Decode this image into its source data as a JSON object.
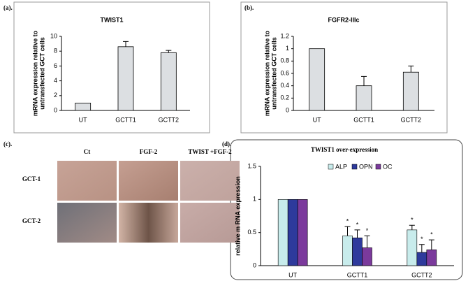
{
  "chart_data": [
    {
      "type": "bar",
      "panel": "(a).",
      "title": "TWIST1",
      "ylabel": [
        "mRNA expression  relative to",
        "untransfected GCT cells"
      ],
      "categories": [
        "UT",
        "GCTT1",
        "GCTT2"
      ],
      "values": [
        1,
        8.6,
        7.8
      ],
      "errors": [
        0,
        0.7,
        0.3
      ],
      "color": "#dcdfe2",
      "ylim": [
        0,
        10
      ],
      "yticks": [
        0,
        2,
        4,
        6,
        8,
        10
      ]
    },
    {
      "type": "bar",
      "panel": "(b).",
      "title": "FGFR2-IIIc",
      "ylabel": [
        "mRNA expression  relative to",
        "untransfected GCT cells"
      ],
      "categories": [
        "UT",
        "GCTT1",
        "GCTT2"
      ],
      "values": [
        1,
        0.4,
        0.62
      ],
      "errors": [
        0,
        0.15,
        0.1
      ],
      "color": "#dcdfe2",
      "ylim": [
        0,
        1.2
      ],
      "yticks": [
        0,
        0.2,
        0.4,
        0.6,
        0.8,
        1,
        1.2
      ]
    },
    {
      "type": "image_grid",
      "panel": "(c).",
      "columns": [
        "Ct",
        "FGF-2",
        "TWIST +FGF-2"
      ],
      "rows": [
        "GCT-1",
        "GCT-2"
      ]
    },
    {
      "type": "grouped_bar",
      "panel": "(d).",
      "title": "TWIST1 over-expression",
      "ylabel": [
        "relative m RNA  expression"
      ],
      "categories": [
        "UT",
        "GCTT1",
        "GCTT2"
      ],
      "series": [
        {
          "name": "ALP",
          "color": "#c8ecec",
          "values": [
            1,
            0.45,
            0.54
          ],
          "errors": [
            0,
            0.14,
            0.07
          ],
          "annotations": [
            null,
            "*",
            "*"
          ]
        },
        {
          "name": "OPN",
          "color": "#2e3a9c",
          "values": [
            1,
            0.42,
            0.2
          ],
          "errors": [
            0,
            0.12,
            0.12
          ],
          "annotations": [
            null,
            "*",
            "*"
          ]
        },
        {
          "name": "OC",
          "color": "#7b3a9c",
          "values": [
            1,
            0.27,
            0.24
          ],
          "errors": [
            0,
            0.18,
            0.15
          ],
          "annotations": [
            null,
            "*",
            "*"
          ]
        }
      ],
      "ylim": [
        0,
        1.5
      ],
      "yticks": [
        0,
        0.5,
        1,
        1.5
      ]
    }
  ]
}
